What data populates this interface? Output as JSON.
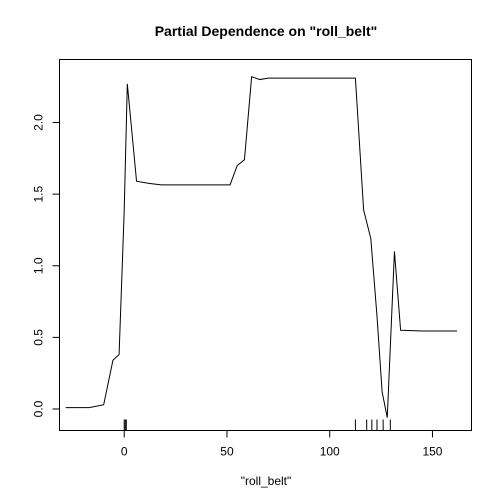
{
  "chart_data": {
    "type": "line",
    "title": "Partial Dependence on \"roll_belt\"",
    "xlabel": "\"roll_belt\"",
    "ylabel": "",
    "xlim": [
      -31.5,
      169
    ],
    "ylim": [
      -0.15,
      2.44
    ],
    "xticks": [
      0,
      50,
      100,
      150
    ],
    "yticks": [
      0.0,
      0.5,
      1.0,
      1.5,
      2.0
    ],
    "ytick_labels": [
      "0.0",
      "0.5",
      "1.0",
      "1.5",
      "2.0"
    ],
    "series": [
      {
        "x": [
          -28.5,
          -17.0,
          -10.0,
          -5.5,
          -2.5,
          0.0,
          1.5,
          6.0,
          12.0,
          18.0,
          30.0,
          44.0,
          51.5,
          55.0,
          58.5,
          62.0,
          66.0,
          70.0,
          90.0,
          112.5,
          116.5,
          120.0,
          123.0,
          125.5,
          128.0,
          131.5,
          134.5,
          145.0,
          162.0
        ],
        "y": [
          0.01,
          0.01,
          0.03,
          0.34,
          0.38,
          1.39,
          2.27,
          1.59,
          1.575,
          1.565,
          1.565,
          1.565,
          1.565,
          1.7,
          1.74,
          2.32,
          2.3,
          2.31,
          2.31,
          2.31,
          1.39,
          1.19,
          0.65,
          0.12,
          -0.06,
          1.1,
          0.55,
          0.545,
          0.545
        ]
      }
    ],
    "rug": [
      0.0,
      0.5,
      1.0,
      112.5,
      118.0,
      120.5,
      123.0,
      126.0,
      129.5
    ],
    "grid": false,
    "legend": "none"
  }
}
